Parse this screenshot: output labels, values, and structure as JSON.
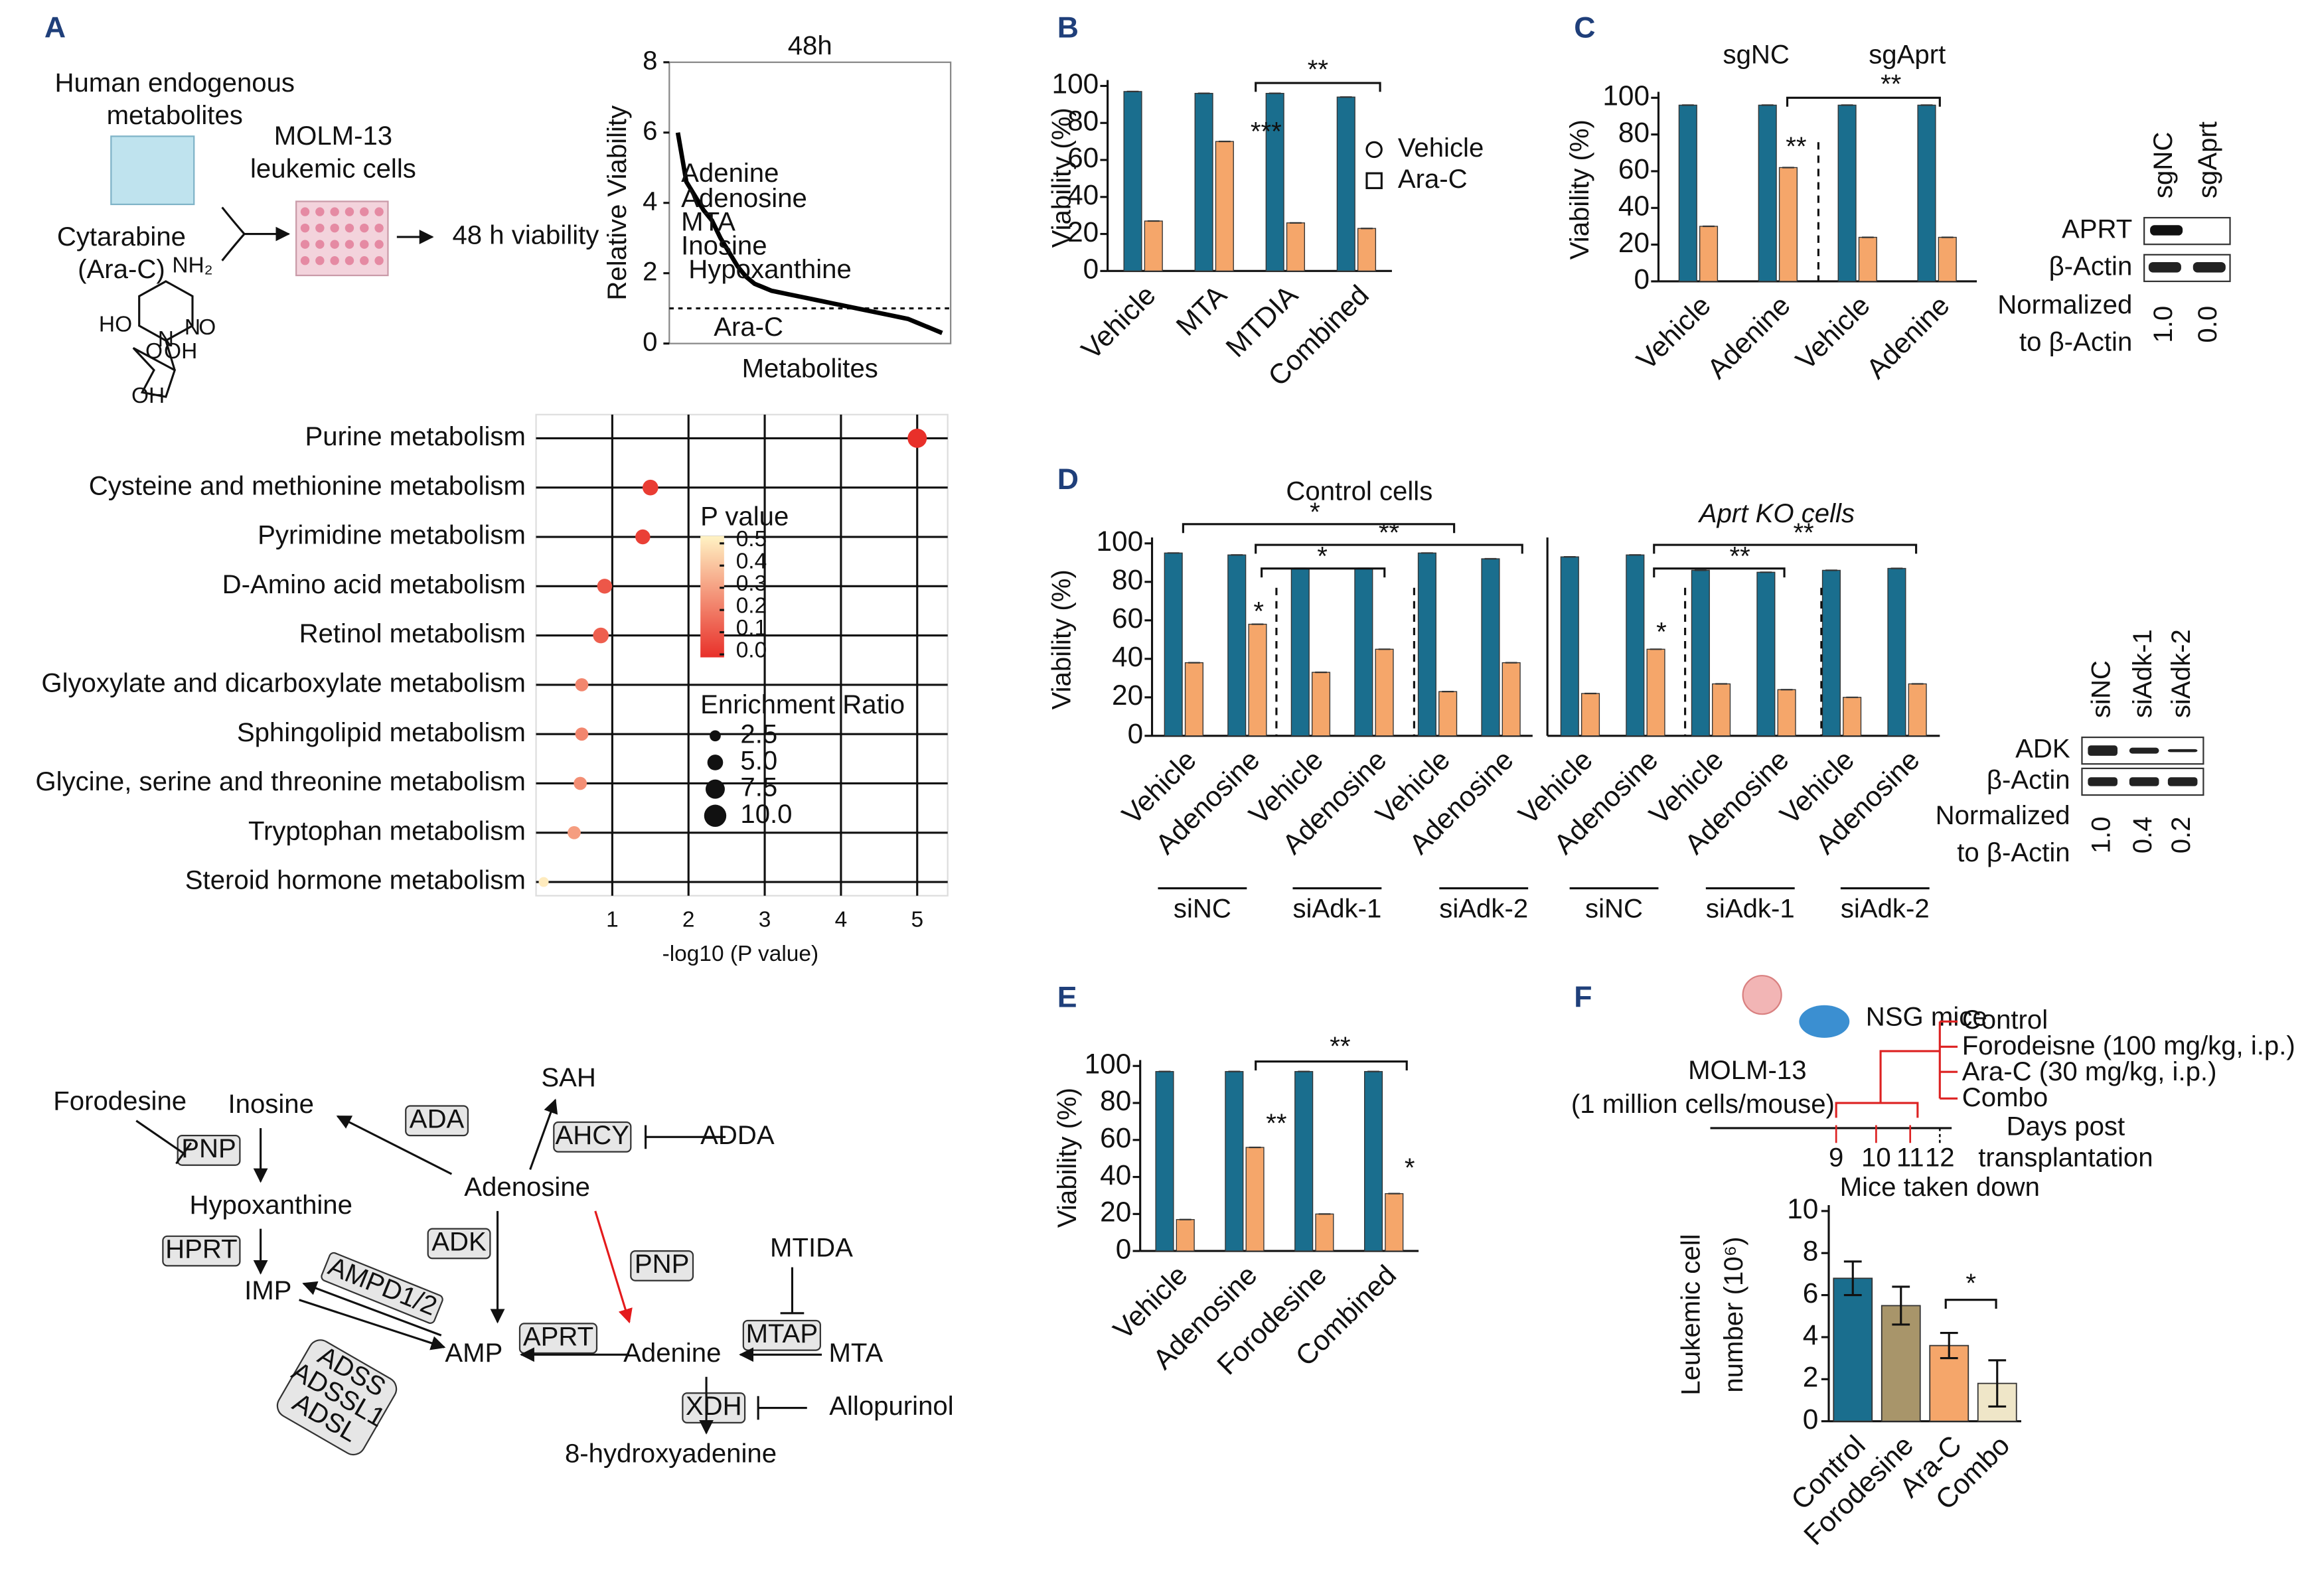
{
  "panel_labels": [
    "A",
    "B",
    "C",
    "D",
    "E",
    "F"
  ],
  "schematic_a": {
    "texts": [
      "Human endogenous",
      "metabolites",
      "MOLM-13",
      "leukemic cells",
      "Cytarabine",
      "(Ara-C)",
      "48 h viability"
    ],
    "molecule": [
      "NH₂",
      "N",
      "N",
      "O",
      "O",
      "HO",
      "OH",
      "OH"
    ]
  },
  "chart_data": [
    {
      "type": "line",
      "title": "48h",
      "y_label": "Relative Viability",
      "x_label": "Metabolites",
      "color": "#000000",
      "x": [
        1,
        2,
        3,
        4,
        5,
        6,
        7,
        8,
        9,
        10,
        11,
        12,
        13,
        14,
        15,
        16,
        17,
        18,
        19,
        20,
        21,
        22,
        23,
        24,
        25,
        26,
        27,
        28,
        29,
        30,
        31,
        32
      ],
      "values": [
        6,
        4.6,
        4.2,
        3.8,
        3.5,
        3.0,
        2.6,
        2.2,
        1.9,
        1.7,
        1.6,
        1.5,
        1.45,
        1.4,
        1.35,
        1.3,
        1.25,
        1.2,
        1.15,
        1.1,
        1.05,
        1.0,
        0.95,
        0.9,
        0.85,
        0.8,
        0.75,
        0.7,
        0.6,
        0.5,
        0.4,
        0.3
      ],
      "xlim": [
        0,
        33
      ],
      "ylim": [
        0,
        8
      ],
      "yticks": [
        0,
        2,
        4,
        6,
        8
      ],
      "reference_line": 1,
      "annotations": [
        {
          "text": "Adenine",
          "color": "#e41a1c"
        },
        {
          "text": "Adenosine",
          "color": "#e41a1c"
        },
        {
          "text": "MTA",
          "color": "#e41a1c"
        },
        {
          "text": "Inosine",
          "color": "#e41a1c"
        },
        {
          "text": "Hypoxanthine",
          "color": "#e41a1c"
        },
        {
          "text": "Ara-C",
          "color": "#1f3f99"
        }
      ]
    },
    {
      "type": "dot",
      "categories": [
        "Purine metabolism",
        "Cysteine and methionine metabolism",
        "Pyrimidine metabolism",
        "D-Amino acid metabolism",
        "Retinol metabolism",
        "Glyoxylate and dicarboxylate metabolism",
        "Sphingolipid metabolism",
        "Glycine, serine and threonine metabolism",
        "Tryptophan metabolism",
        "Steroid hormone metabolism"
      ],
      "values": [
        5.0,
        1.5,
        1.4,
        0.9,
        0.85,
        0.6,
        0.6,
        0.58,
        0.5,
        0.1
      ],
      "sizes": [
        7.5,
        5,
        4.5,
        4.5,
        5,
        3.5,
        3.5,
        3.5,
        3.5,
        2
      ],
      "pvalues": [
        0.0,
        0.03,
        0.04,
        0.1,
        0.12,
        0.22,
        0.22,
        0.24,
        0.28,
        0.48
      ],
      "xlim": [
        0,
        5.4
      ],
      "xticks": [
        1,
        2,
        3,
        4,
        5
      ],
      "x_label": "-log10 (P value)",
      "grid": true,
      "color_legend": {
        "title": "P value",
        "ticks": [
          0.5,
          0.4,
          0.3,
          0.2,
          0.1,
          {
            "value": 0,
            "label": "0.0"
          }
        ]
      },
      "size_legend": {
        "title": "Enrichment Ratio",
        "ticks": [
          2.5,
          {
            "value": 5,
            "label": "5.0"
          },
          7.5,
          {
            "value": 10,
            "label": "10.0"
          }
        ]
      }
    },
    {
      "type": "bar",
      "categories": [
        "Vehicle",
        "MTA",
        "MTDIA",
        "Combined"
      ],
      "series": [
        {
          "name": "Vehicle",
          "color": "#1a6e8e",
          "values": [
            97,
            96,
            96,
            94
          ]
        },
        {
          "name": "Ara-C",
          "color": "#f5a66a",
          "values": [
            27,
            70,
            26,
            23
          ]
        }
      ],
      "ylim": [
        0,
        100
      ],
      "yticks": [
        0,
        20,
        40,
        60,
        80,
        100
      ],
      "y_label": "Viability (%)",
      "annotations": [
        "***",
        "**"
      ],
      "legend": "right"
    },
    {
      "type": "bar",
      "categories": [
        "Vehicle",
        "Adenine",
        "Vehicle",
        "Adenine"
      ],
      "groups": [
        "sgNC",
        "sgAprt"
      ],
      "series": [
        {
          "color": "#1a6e8e",
          "values": [
            96,
            96,
            96,
            96
          ]
        },
        {
          "color": "#f5a66a",
          "values": [
            30,
            62,
            24,
            24
          ]
        }
      ],
      "ylim": [
        0,
        100
      ],
      "yticks": [
        0,
        20,
        40,
        60,
        80,
        100
      ],
      "y_label": "Viability (%)",
      "annotations": [
        "**",
        "**"
      ]
    },
    {
      "type": "bar",
      "title": "Control cells",
      "categories": [
        "Vehicle",
        "Adenosine",
        "Vehicle",
        "Adenosine",
        "Vehicle",
        "Adenosine"
      ],
      "groups": [
        "siNC",
        "siAdk-1",
        "siAdk-2"
      ],
      "series": [
        {
          "color": "#1a6e8e",
          "values": [
            95,
            94,
            87,
            87,
            95,
            92
          ]
        },
        {
          "color": "#f5a66a",
          "values": [
            38,
            58,
            33,
            45,
            23,
            38
          ]
        }
      ],
      "ylim": [
        0,
        100
      ],
      "yticks": [
        0,
        20,
        40,
        60,
        80,
        100
      ],
      "y_label": "Viability (%)",
      "annotations": [
        "*",
        "**",
        "*",
        "*"
      ]
    },
    {
      "type": "bar",
      "title": "Aprt KO cells",
      "categories": [
        "Vehicle",
        "Adenosine",
        "Vehicle",
        "Adenosine",
        "Vehicle",
        "Adenosine"
      ],
      "groups": [
        "siNC",
        "siAdk-1",
        "siAdk-2"
      ],
      "series": [
        {
          "color": "#1a6e8e",
          "values": [
            93,
            94,
            86,
            85,
            86,
            87
          ]
        },
        {
          "color": "#f5a66a",
          "values": [
            22,
            45,
            27,
            24,
            20,
            27
          ]
        }
      ],
      "ylim": [
        0,
        100
      ],
      "annotations": [
        "**",
        "**",
        "*"
      ]
    },
    {
      "type": "bar",
      "categories": [
        "Vehicle",
        "Adenosine",
        "Forodesine",
        "Combined"
      ],
      "series": [
        {
          "color": "#1a6e8e",
          "values": [
            97,
            97,
            97,
            97
          ]
        },
        {
          "color": "#f5a66a",
          "values": [
            17,
            56,
            20,
            31
          ]
        }
      ],
      "ylim": [
        0,
        100
      ],
      "yticks": [
        0,
        20,
        40,
        60,
        80,
        100
      ],
      "y_label": "Viability (%)",
      "annotations": [
        "**",
        "*",
        "**"
      ]
    },
    {
      "type": "bar",
      "categories": [
        "Control",
        "Forodesine",
        "Ara-C",
        "Combo"
      ],
      "values": [
        6.8,
        5.5,
        3.6,
        1.8
      ],
      "errors": [
        0.8,
        0.9,
        0.6,
        1.1
      ],
      "colors": [
        "#1a6e8e",
        "#a8956a",
        "#f5a66a",
        "#efe6c8"
      ],
      "ylim": [
        0,
        10
      ],
      "yticks": [
        0,
        2,
        4,
        6,
        8,
        10
      ],
      "y_label_lines": [
        "Leukemic cell",
        "number (10⁶)"
      ],
      "annotations": [
        "*"
      ]
    }
  ],
  "blot_c": {
    "lanes": [
      "sgNC",
      "sgAprt"
    ],
    "rows": [
      "APRT",
      "β-Actin"
    ],
    "norm_label": [
      "Normalized",
      "to β-Actin"
    ],
    "norm_values": [
      "1.0",
      "0.0"
    ]
  },
  "blot_d": {
    "lanes": [
      "siNC",
      "siAdk-1",
      "siAdk-2"
    ],
    "rows": [
      "ADK",
      "β-Actin"
    ],
    "norm_label": [
      "Normalized",
      "to β-Actin"
    ],
    "norm_values": [
      "1.0",
      "0.4",
      "0.2"
    ]
  },
  "schematic_f": {
    "mice": "NSG mice",
    "cells": [
      "MOLM-13",
      "(1 million cells/mouse)"
    ],
    "treatments": [
      "Control",
      "Forodeisne (100 mg/kg, i.p.)",
      "Ara-C (30 mg/kg, i.p.)",
      "Combo"
    ],
    "days": [
      "9",
      "10",
      "11",
      "12"
    ],
    "axis_label": [
      "Days post",
      "transplantation"
    ],
    "endpoint": "Mice taken down"
  },
  "pathway": {
    "nodes": [
      {
        "label": "Forodesine",
        "color": "#1f4e99"
      },
      {
        "label": "Inosine",
        "color": "#e41a1c"
      },
      {
        "label": "Hypoxanthine",
        "color": "#e41a1c"
      },
      {
        "label": "IMP",
        "color": "#111111"
      },
      {
        "label": "AMP",
        "color": "#111111"
      },
      {
        "label": "SAH",
        "color": "#111111"
      },
      {
        "label": "ADDA",
        "color": "#1f4e99"
      },
      {
        "label": "Adenosine",
        "color": "#e41a1c"
      },
      {
        "label": "MTIDA",
        "color": "#1f4e99"
      },
      {
        "label": "MTA",
        "color": "#e41a1c"
      },
      {
        "label": "Adenine",
        "color": "#e41a1c"
      },
      {
        "label": "Allopurinol",
        "color": "#1f4e99"
      },
      {
        "label": "8-hydroxyadenine",
        "color": "#111111"
      }
    ],
    "enzymes": [
      "PNP",
      "HPRT",
      "ADA",
      "AHCY",
      "ADK",
      "APRT",
      "PNP",
      "MTAP",
      "XDH",
      "AMPD1/2"
    ],
    "enzyme_group": [
      "ADSS",
      "ADSSL1",
      "ADSL"
    ]
  }
}
